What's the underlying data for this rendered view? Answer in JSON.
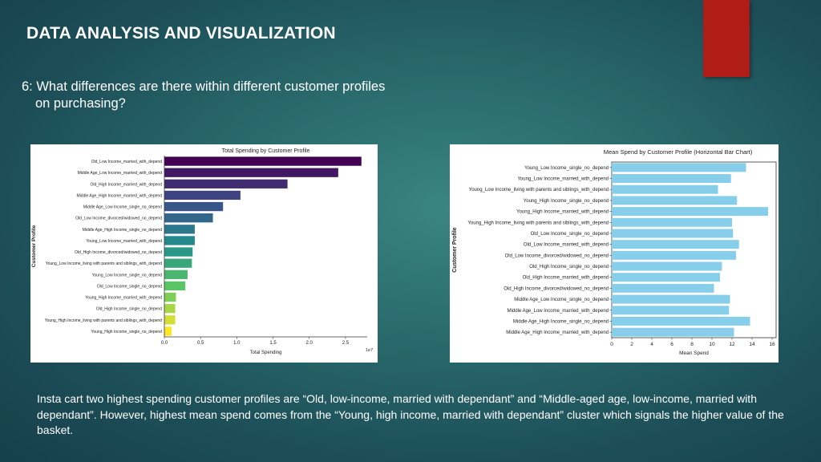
{
  "slide": {
    "title": "DATA ANALYSIS AND VISUALIZATION",
    "question_line1": "6: What differences are there within different customer profiles",
    "question_line2": "on purchasing?",
    "caption": "Insta cart two highest spending customer profiles are “Old, low-income, married with dependant”  and “Middle-aged age, low-income, married with dependant”.  However, highest mean spend comes from the “Young, high income, married with dependant” cluster which signals the higher value of the basket.",
    "accent_color": "#b01c16"
  },
  "chart_data": [
    {
      "type": "bar",
      "orientation": "horizontal",
      "title": "Total Spending by Customer Profile",
      "xlabel": "Total Spending",
      "ylabel": "Customer Profile",
      "x_scale_note": "1e7",
      "xlim": [
        0,
        2.8
      ],
      "xticks": [
        "0.0",
        "0.5",
        "1.0",
        "1.5",
        "2.0",
        "2.5"
      ],
      "palette": "viridis",
      "categories": [
        "Old_Low Income_married_with_depend",
        "Middle Age_Low Income_married_with_depend",
        "Old_High Income_married_with_depend",
        "Middle Age_High Income_married_with_depend",
        "Middle Age_Low Income_single_no_depend",
        "Old_Low Income_divorced/widowed_no_depend",
        "Middle Age_High Income_single_no_depend",
        "Young_Low Income_married_with_depend",
        "Old_High Income_divorced/widowed_no_depend",
        "Young_Low Income_living with parents and siblings_with_depend",
        "Young_Low Income_single_no_depend",
        "Old_Low Income_single_no_depend",
        "Young_High Income_married_with_depend",
        "Old_High Income_single_no_depend",
        "Young_High Income_living with parents and siblings_with_depend",
        "Young_High Income_single_no_depend"
      ],
      "values": [
        2.72,
        2.4,
        1.7,
        1.05,
        0.81,
        0.67,
        0.42,
        0.42,
        0.39,
        0.38,
        0.32,
        0.29,
        0.16,
        0.15,
        0.15,
        0.1
      ]
    },
    {
      "type": "bar",
      "orientation": "horizontal",
      "title": "Mean Spend by Customer Profile (Horizontal Bar Chart)",
      "xlabel": "Mean Spend",
      "ylabel": "Customer Profile",
      "xlim": [
        0,
        16.4
      ],
      "xticks": [
        0,
        2,
        4,
        6,
        8,
        10,
        12,
        14,
        16
      ],
      "bar_color": "#87ceeb",
      "categories": [
        "Young_Low Income_single_no_depend",
        "Young_Low Income_married_with_depend",
        "Young_Low Income_living with parents and siblings_with_depend",
        "Young_High Income_single_no_depend",
        "Young_High Income_married_with_depend",
        "Young_High Income_living with parents and siblings_with_depend",
        "Old_Low Income_single_no_depend",
        "Old_Low Income_married_with_depend",
        "Old_Low Income_divorced/widowed_no_depend",
        "Old_High Income_single_no_depend",
        "Old_High Income_married_with_depend",
        "Old_High Income_divorced/widowed_no_depend",
        "Middle Age_Low Income_single_no_depend",
        "Middle Age_Low Income_married_with_depend",
        "Middle Age_High Income_single_no_depend",
        "Middle Age_High Income_married_with_depend"
      ],
      "values": [
        13.4,
        11.9,
        10.6,
        12.5,
        15.6,
        12.0,
        12.1,
        12.7,
        12.4,
        11.0,
        10.8,
        10.2,
        11.8,
        11.7,
        13.8,
        12.2
      ]
    }
  ]
}
